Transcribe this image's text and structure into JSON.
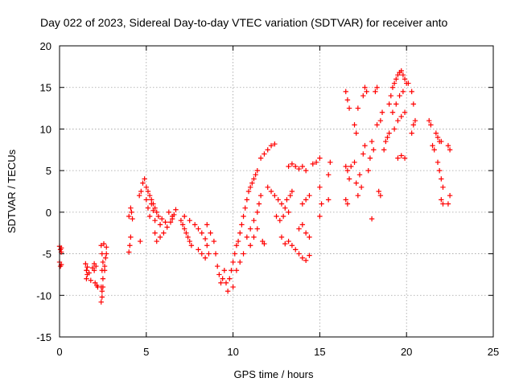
{
  "chart_data": {
    "type": "scatter",
    "title": "Day 022 of 2023, Sidereal Day-to-day VTEC variation (SDTVAR) for receiver anto",
    "xlabel": "GPS time / hours",
    "ylabel": "SDTVAR / TECUs",
    "xlim": [
      0,
      25
    ],
    "ylim": [
      -15,
      20
    ],
    "xticks": [
      0,
      5,
      10,
      15,
      20,
      25
    ],
    "yticks": [
      -15,
      -10,
      -5,
      0,
      5,
      10,
      15,
      20
    ],
    "grid": true,
    "marker": "+",
    "color": "#ff0000",
    "series": [
      {
        "name": "SDTVAR",
        "points": [
          [
            0.0,
            -4.1
          ],
          [
            0.05,
            -4.5
          ],
          [
            0.1,
            -4.8
          ],
          [
            0.0,
            -6.0
          ],
          [
            0.1,
            -6.3
          ],
          [
            0.05,
            -6.5
          ],
          [
            0.1,
            -4.3
          ],
          [
            1.5,
            -6.2
          ],
          [
            1.55,
            -7.0
          ],
          [
            1.6,
            -7.5
          ],
          [
            1.55,
            -8.0
          ],
          [
            1.6,
            -6.6
          ],
          [
            1.7,
            -7.3
          ],
          [
            1.8,
            -8.2
          ],
          [
            1.9,
            -6.7
          ],
          [
            2.0,
            -7.0
          ],
          [
            2.05,
            -8.5
          ],
          [
            2.1,
            -6.5
          ],
          [
            2.15,
            -8.8
          ],
          [
            2.2,
            -9.0
          ],
          [
            2.0,
            -6.2
          ],
          [
            2.4,
            -4.0
          ],
          [
            2.45,
            -5.0
          ],
          [
            2.5,
            -6.0
          ],
          [
            2.45,
            -7.0
          ],
          [
            2.5,
            -8.0
          ],
          [
            2.4,
            -9.0
          ],
          [
            2.45,
            -9.5
          ],
          [
            2.4,
            -10.8
          ],
          [
            2.45,
            -10.2
          ],
          [
            2.5,
            -9.0
          ],
          [
            2.6,
            -7.0
          ],
          [
            2.65,
            -5.5
          ],
          [
            2.7,
            -5.0
          ],
          [
            2.7,
            -4.2
          ],
          [
            2.55,
            -3.8
          ],
          [
            2.6,
            -6.5
          ],
          [
            4.0,
            -4.8
          ],
          [
            4.05,
            -4.0
          ],
          [
            4.1,
            -3.0
          ],
          [
            4.0,
            -0.5
          ],
          [
            4.1,
            0.5
          ],
          [
            4.15,
            0.0
          ],
          [
            4.2,
            -0.8
          ],
          [
            4.6,
            2.0
          ],
          [
            4.65,
            -3.5
          ],
          [
            4.7,
            2.5
          ],
          [
            4.8,
            3.5
          ],
          [
            4.9,
            4.0
          ],
          [
            5.0,
            3.0
          ],
          [
            5.1,
            2.5
          ],
          [
            5.2,
            2.0
          ],
          [
            5.3,
            1.5
          ],
          [
            5.4,
            1.0
          ],
          [
            5.5,
            0.5
          ],
          [
            5.0,
            1.5
          ],
          [
            5.1,
            0.5
          ],
          [
            5.2,
            -0.5
          ],
          [
            5.3,
            1.0
          ],
          [
            5.4,
            0.2
          ],
          [
            5.5,
            -1.0
          ],
          [
            5.6,
            0.0
          ],
          [
            5.7,
            -0.5
          ],
          [
            5.8,
            -1.5
          ],
          [
            5.5,
            -2.5
          ],
          [
            5.6,
            -3.5
          ],
          [
            5.8,
            -3.0
          ],
          [
            6.0,
            -2.5
          ],
          [
            6.2,
            -1.8
          ],
          [
            6.4,
            -1.2
          ],
          [
            6.5,
            -0.8
          ],
          [
            6.6,
            -0.3
          ],
          [
            6.7,
            0.3
          ],
          [
            5.9,
            -0.8
          ],
          [
            6.1,
            -1.2
          ],
          [
            6.3,
            0.0
          ],
          [
            6.5,
            -0.5
          ],
          [
            7.0,
            -1.0
          ],
          [
            7.1,
            -1.5
          ],
          [
            7.2,
            -2.0
          ],
          [
            7.3,
            -2.5
          ],
          [
            7.4,
            -3.0
          ],
          [
            7.5,
            -3.5
          ],
          [
            7.6,
            -4.0
          ],
          [
            7.2,
            -0.5
          ],
          [
            7.5,
            -1.0
          ],
          [
            7.8,
            -1.5
          ],
          [
            8.0,
            -2.0
          ],
          [
            8.2,
            -2.5
          ],
          [
            8.4,
            -3.2
          ],
          [
            8.5,
            -4.0
          ],
          [
            8.0,
            -4.5
          ],
          [
            8.2,
            -5.0
          ],
          [
            8.4,
            -5.5
          ],
          [
            8.6,
            -5.0
          ],
          [
            8.5,
            -1.5
          ],
          [
            8.7,
            -2.5
          ],
          [
            8.9,
            -3.5
          ],
          [
            9.0,
            -5.0
          ],
          [
            9.1,
            -6.5
          ],
          [
            9.2,
            -7.5
          ],
          [
            9.3,
            -8.5
          ],
          [
            9.4,
            -8.0
          ],
          [
            9.5,
            -7.0
          ],
          [
            9.6,
            -8.5
          ],
          [
            9.7,
            -9.5
          ],
          [
            9.8,
            -8.0
          ],
          [
            9.9,
            -7.0
          ],
          [
            10.0,
            -6.0
          ],
          [
            10.1,
            -5.0
          ],
          [
            10.2,
            -4.0
          ],
          [
            10.3,
            -3.5
          ],
          [
            10.4,
            -2.5
          ],
          [
            10.5,
            -1.5
          ],
          [
            10.6,
            -0.5
          ],
          [
            10.7,
            0.5
          ],
          [
            10.8,
            1.5
          ],
          [
            10.9,
            2.5
          ],
          [
            11.0,
            3.0
          ],
          [
            11.1,
            3.5
          ],
          [
            11.2,
            4.0
          ],
          [
            11.3,
            4.5
          ],
          [
            11.4,
            5.0
          ],
          [
            10.0,
            -9.0
          ],
          [
            10.2,
            -7.0
          ],
          [
            10.4,
            -6.0
          ],
          [
            10.6,
            -5.0
          ],
          [
            10.8,
            -3.0
          ],
          [
            11.0,
            -2.0
          ],
          [
            11.2,
            -1.0
          ],
          [
            11.4,
            0.0
          ],
          [
            11.5,
            1.0
          ],
          [
            11.6,
            2.0
          ],
          [
            11.0,
            -4.0
          ],
          [
            11.2,
            -3.0
          ],
          [
            11.4,
            -2.0
          ],
          [
            11.6,
            6.5
          ],
          [
            11.8,
            7.0
          ],
          [
            12.0,
            7.5
          ],
          [
            12.2,
            8.0
          ],
          [
            12.4,
            8.2
          ],
          [
            11.7,
            -3.5
          ],
          [
            11.8,
            -3.8
          ],
          [
            12.0,
            3.0
          ],
          [
            12.2,
            2.5
          ],
          [
            12.4,
            2.0
          ],
          [
            12.6,
            1.5
          ],
          [
            12.8,
            1.0
          ],
          [
            13.0,
            0.5
          ],
          [
            13.2,
            0.0
          ],
          [
            12.5,
            -0.5
          ],
          [
            12.7,
            -1.0
          ],
          [
            12.9,
            -0.5
          ],
          [
            13.1,
            1.5
          ],
          [
            13.3,
            2.0
          ],
          [
            13.4,
            2.5
          ],
          [
            12.8,
            -3.0
          ],
          [
            13.0,
            -3.8
          ],
          [
            13.2,
            -3.5
          ],
          [
            13.4,
            -4.0
          ],
          [
            13.6,
            -4.5
          ],
          [
            13.8,
            -5.0
          ],
          [
            14.0,
            -5.5
          ],
          [
            14.2,
            -5.8
          ],
          [
            14.4,
            -5.2
          ],
          [
            13.8,
            -2.0
          ],
          [
            14.0,
            -1.5
          ],
          [
            14.2,
            -2.5
          ],
          [
            14.4,
            -3.0
          ],
          [
            14.0,
            1.0
          ],
          [
            14.2,
            1.5
          ],
          [
            14.4,
            2.0
          ],
          [
            13.2,
            5.5
          ],
          [
            13.4,
            5.8
          ],
          [
            13.6,
            5.5
          ],
          [
            13.8,
            5.2
          ],
          [
            14.0,
            5.5
          ],
          [
            14.2,
            5.0
          ],
          [
            14.6,
            5.8
          ],
          [
            14.8,
            6.0
          ],
          [
            15.0,
            3.0
          ],
          [
            15.1,
            1.0
          ],
          [
            15.0,
            -0.5
          ],
          [
            15.0,
            6.5
          ],
          [
            15.5,
            4.5
          ],
          [
            15.6,
            6.0
          ],
          [
            15.5,
            1.5
          ],
          [
            16.5,
            5.5
          ],
          [
            16.6,
            5.0
          ],
          [
            16.7,
            4.0
          ],
          [
            16.8,
            5.5
          ],
          [
            16.5,
            14.5
          ],
          [
            16.6,
            13.5
          ],
          [
            16.7,
            12.5
          ],
          [
            16.5,
            1.5
          ],
          [
            16.6,
            1.0
          ],
          [
            17.0,
            6.0
          ],
          [
            17.1,
            3.5
          ],
          [
            17.2,
            2.0
          ],
          [
            17.3,
            4.5
          ],
          [
            17.4,
            3.0
          ],
          [
            17.0,
            10.5
          ],
          [
            17.1,
            9.5
          ],
          [
            17.2,
            12.5
          ],
          [
            17.5,
            14.0
          ],
          [
            17.6,
            15.0
          ],
          [
            17.7,
            14.5
          ],
          [
            17.5,
            7.0
          ],
          [
            17.6,
            8.0
          ],
          [
            17.8,
            5.0
          ],
          [
            17.9,
            6.5
          ],
          [
            18.0,
            -0.8
          ],
          [
            18.0,
            8.5
          ],
          [
            18.1,
            7.5
          ],
          [
            18.2,
            14.5
          ],
          [
            18.3,
            15.0
          ],
          [
            18.4,
            2.5
          ],
          [
            18.5,
            2.0
          ],
          [
            18.3,
            10.5
          ],
          [
            18.5,
            11.0
          ],
          [
            18.7,
            7.5
          ],
          [
            18.8,
            8.5
          ],
          [
            18.9,
            9.0
          ],
          [
            19.0,
            9.5
          ],
          [
            18.6,
            12.0
          ],
          [
            19.0,
            13.0
          ],
          [
            19.1,
            14.0
          ],
          [
            19.2,
            15.0
          ],
          [
            19.3,
            15.5
          ],
          [
            19.4,
            16.0
          ],
          [
            19.5,
            16.5
          ],
          [
            19.6,
            16.8
          ],
          [
            19.7,
            17.0
          ],
          [
            19.8,
            16.5
          ],
          [
            19.9,
            16.0
          ],
          [
            20.0,
            15.5
          ],
          [
            19.2,
            12.0
          ],
          [
            19.4,
            13.0
          ],
          [
            19.6,
            14.0
          ],
          [
            19.8,
            14.5
          ],
          [
            19.3,
            10.0
          ],
          [
            19.5,
            11.0
          ],
          [
            19.7,
            11.5
          ],
          [
            19.9,
            12.0
          ],
          [
            19.5,
            6.5
          ],
          [
            19.7,
            6.8
          ],
          [
            19.9,
            6.5
          ],
          [
            20.1,
            15.5
          ],
          [
            20.3,
            14.5
          ],
          [
            20.4,
            13.0
          ],
          [
            20.3,
            9.5
          ],
          [
            20.4,
            10.5
          ],
          [
            20.5,
            11.0
          ],
          [
            21.3,
            11.0
          ],
          [
            21.4,
            10.5
          ],
          [
            21.5,
            8.0
          ],
          [
            21.6,
            7.5
          ],
          [
            21.7,
            9.5
          ],
          [
            21.8,
            9.0
          ],
          [
            21.9,
            8.5
          ],
          [
            22.0,
            8.5
          ],
          [
            21.8,
            6.0
          ],
          [
            21.9,
            5.0
          ],
          [
            22.0,
            4.0
          ],
          [
            22.1,
            3.0
          ],
          [
            22.0,
            1.5
          ],
          [
            22.1,
            1.0
          ],
          [
            22.4,
            8.0
          ],
          [
            22.5,
            7.5
          ],
          [
            22.4,
            1.0
          ],
          [
            22.5,
            2.0
          ]
        ]
      }
    ]
  }
}
